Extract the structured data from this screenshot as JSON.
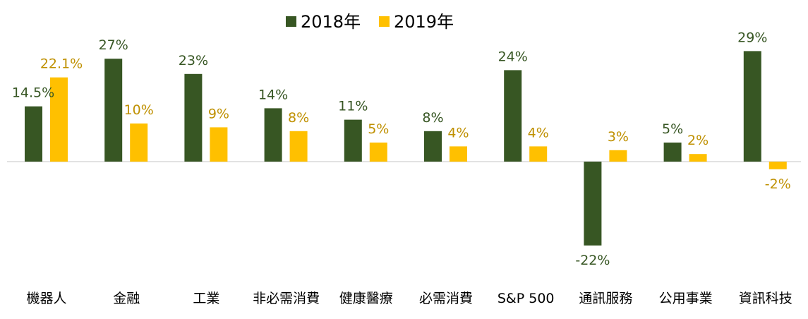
{
  "chart_data": {
    "type": "bar",
    "categories": [
      "機器人",
      "金融",
      "工業",
      "非必需消費",
      "健康醫療",
      "必需消費",
      "S&P 500",
      "通訊服務",
      "公用事業",
      "資訊科技"
    ],
    "series": [
      {
        "name": "2018年",
        "color": "#375623",
        "values": [
          14.5,
          27,
          23,
          14,
          11,
          8,
          24,
          -22,
          5,
          29
        ],
        "labels": [
          "14.5%",
          "27%",
          "23%",
          "14%",
          "11%",
          "8%",
          "24%",
          "-22%",
          "5%",
          "29%"
        ]
      },
      {
        "name": "2019年",
        "color": "#FFC000",
        "label_color": "#BF9000",
        "values": [
          22.1,
          10,
          9,
          8,
          5,
          4,
          4,
          3,
          2,
          -2
        ],
        "labels": [
          "22.1%",
          "10%",
          "9%",
          "8%",
          "5%",
          "4%",
          "4%",
          "3%",
          "2%",
          "-2%"
        ]
      }
    ],
    "ylim": [
      -22,
      29
    ],
    "grid": false,
    "legend_position": "top-center",
    "axis_line_color": "#D9D9D9"
  }
}
